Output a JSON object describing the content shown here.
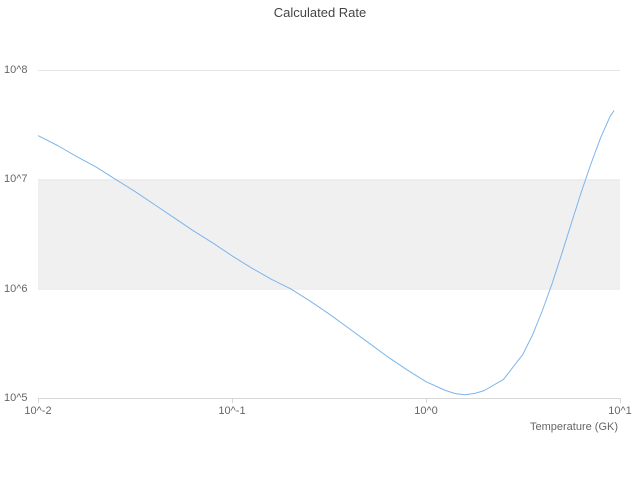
{
  "colors": {
    "line": "#7cb5ec",
    "band": "#f0f0f0",
    "gridline": "#e6e6e6",
    "axis_line": "#d8d8d8",
    "title_text": "#444444",
    "tick_text": "#666666",
    "background": "#ffffff"
  },
  "chart_data": {
    "type": "line",
    "title": "Calculated Rate",
    "xlabel": "Temperature (GK)",
    "ylabel": "",
    "x_scale": "log",
    "y_scale": "log",
    "xlim": [
      0.01,
      10
    ],
    "ylim": [
      100000,
      100000000
    ],
    "grid": "horizontal",
    "legend": "none",
    "band": {
      "from": 1000000,
      "to": 10000000,
      "color": "#f0f0f0"
    },
    "x_ticks": [
      {
        "value": 0.01,
        "label": "10^-2"
      },
      {
        "value": 0.1,
        "label": "10^-1"
      },
      {
        "value": 1,
        "label": "10^0"
      },
      {
        "value": 10,
        "label": "10^1"
      }
    ],
    "y_ticks": [
      {
        "value": 100000,
        "label": "10^5"
      },
      {
        "value": 1000000,
        "label": "10^6"
      },
      {
        "value": 10000000,
        "label": "10^7"
      },
      {
        "value": 100000000,
        "label": "10^8"
      }
    ],
    "series": [
      {
        "name": "Calculated Rate",
        "color": "#7cb5ec",
        "points": [
          [
            0.01,
            25100000
          ],
          [
            0.0126,
            20400000
          ],
          [
            0.0158,
            16200000
          ],
          [
            0.02,
            12900000
          ],
          [
            0.0251,
            10000000
          ],
          [
            0.0316,
            7760000
          ],
          [
            0.0398,
            5890000
          ],
          [
            0.0501,
            4470000
          ],
          [
            0.0631,
            3390000
          ],
          [
            0.0794,
            2630000
          ],
          [
            0.1,
            2000000
          ],
          [
            0.126,
            1550000
          ],
          [
            0.158,
            1230000
          ],
          [
            0.2,
            1000000
          ],
          [
            0.251,
            776000
          ],
          [
            0.316,
            589000
          ],
          [
            0.398,
            437000
          ],
          [
            0.501,
            324000
          ],
          [
            0.631,
            240000
          ],
          [
            0.794,
            182000
          ],
          [
            1.0,
            141000
          ],
          [
            1.26,
            117000
          ],
          [
            1.41,
            110000
          ],
          [
            1.58,
            107000
          ],
          [
            1.78,
            110000
          ],
          [
            2.0,
            117000
          ],
          [
            2.51,
            148000
          ],
          [
            3.16,
            251000
          ],
          [
            3.55,
            380000
          ],
          [
            3.98,
            631000
          ],
          [
            4.47,
            1120000
          ],
          [
            5.01,
            2090000
          ],
          [
            5.62,
            3980000
          ],
          [
            6.31,
            7590000
          ],
          [
            7.08,
            13800000
          ],
          [
            7.94,
            24000000
          ],
          [
            8.91,
            38000000
          ],
          [
            9.33,
            42700000
          ]
        ]
      }
    ]
  }
}
